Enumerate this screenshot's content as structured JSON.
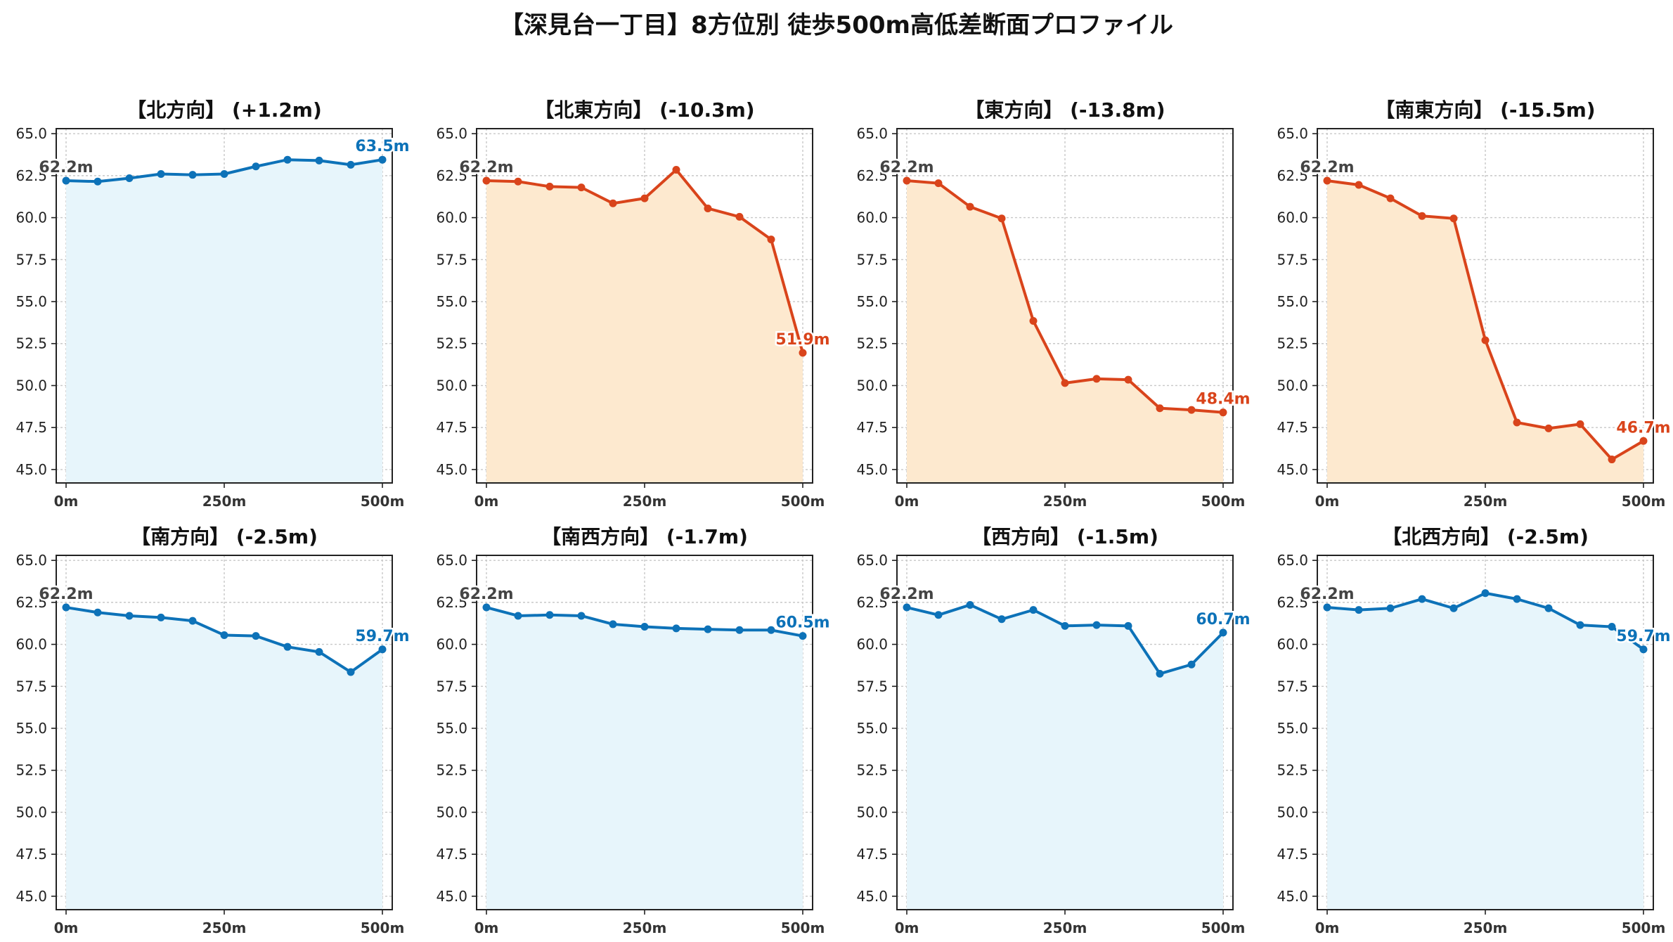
{
  "title": "【深見台一丁目】8方位別 徒歩500m高低差断面プロファイル",
  "colors": {
    "up_line": "#0d72b8",
    "up_fill": "#e7f5fb",
    "down_line": "#d9441b",
    "down_fill": "#fde9cf",
    "start_label": "#444444",
    "grid": "#c8c8c8",
    "axis": "#222222"
  },
  "chart_data": [
    {
      "type": "area",
      "title": "【北方向】 (+1.2m)",
      "trend": "up",
      "x": [
        0,
        50,
        100,
        150,
        200,
        250,
        300,
        350,
        400,
        450,
        500
      ],
      "values": [
        62.2,
        62.15,
        62.35,
        62.6,
        62.55,
        62.6,
        63.05,
        63.45,
        63.4,
        63.15,
        63.45
      ],
      "start_label": "62.2m",
      "end_label": "63.5m",
      "ylim": [
        44.2,
        65.3
      ],
      "yticks": [
        "65.0",
        "62.5",
        "60.0",
        "57.5",
        "55.0",
        "52.5",
        "50.0",
        "47.5",
        "45.0"
      ],
      "xticks": [
        "0m",
        "250m",
        "500m"
      ],
      "grid": true
    },
    {
      "type": "area",
      "title": "【北東方向】 (-10.3m)",
      "trend": "down",
      "x": [
        0,
        50,
        100,
        150,
        200,
        250,
        300,
        350,
        400,
        450,
        500
      ],
      "values": [
        62.2,
        62.15,
        61.85,
        61.8,
        60.85,
        61.15,
        62.85,
        60.55,
        60.05,
        58.7,
        51.95
      ],
      "start_label": "62.2m",
      "end_label": "51.9m",
      "ylim": [
        44.2,
        65.3
      ],
      "yticks": [
        "65.0",
        "62.5",
        "60.0",
        "57.5",
        "55.0",
        "52.5",
        "50.0",
        "47.5",
        "45.0"
      ],
      "xticks": [
        "0m",
        "250m",
        "500m"
      ],
      "grid": true
    },
    {
      "type": "area",
      "title": "【東方向】 (-13.8m)",
      "trend": "down",
      "x": [
        0,
        50,
        100,
        150,
        200,
        250,
        300,
        350,
        400,
        450,
        500
      ],
      "values": [
        62.2,
        62.05,
        60.65,
        59.95,
        53.85,
        50.15,
        50.4,
        50.35,
        48.65,
        48.55,
        48.4
      ],
      "start_label": "62.2m",
      "end_label": "48.4m",
      "ylim": [
        44.2,
        65.3
      ],
      "yticks": [
        "65.0",
        "62.5",
        "60.0",
        "57.5",
        "55.0",
        "52.5",
        "50.0",
        "47.5",
        "45.0"
      ],
      "xticks": [
        "0m",
        "250m",
        "500m"
      ],
      "grid": true
    },
    {
      "type": "area",
      "title": "【南東方向】 (-15.5m)",
      "trend": "down",
      "x": [
        0,
        50,
        100,
        150,
        200,
        250,
        300,
        350,
        400,
        450,
        500
      ],
      "values": [
        62.2,
        61.95,
        61.15,
        60.1,
        59.95,
        52.7,
        47.8,
        47.45,
        47.7,
        45.6,
        46.7
      ],
      "start_label": "62.2m",
      "end_label": "46.7m",
      "ylim": [
        44.2,
        65.3
      ],
      "yticks": [
        "65.0",
        "62.5",
        "60.0",
        "57.5",
        "55.0",
        "52.5",
        "50.0",
        "47.5",
        "45.0"
      ],
      "xticks": [
        "0m",
        "250m",
        "500m"
      ],
      "grid": true
    },
    {
      "type": "area",
      "title": "【南方向】 (-2.5m)",
      "trend": "up",
      "x": [
        0,
        50,
        100,
        150,
        200,
        250,
        300,
        350,
        400,
        450,
        500
      ],
      "values": [
        62.2,
        61.9,
        61.7,
        61.6,
        61.4,
        60.55,
        60.5,
        59.85,
        59.55,
        58.35,
        59.7
      ],
      "start_label": "62.2m",
      "end_label": "59.7m",
      "ylim": [
        44.2,
        65.3
      ],
      "yticks": [
        "65.0",
        "62.5",
        "60.0",
        "57.5",
        "55.0",
        "52.5",
        "50.0",
        "47.5",
        "45.0"
      ],
      "xticks": [
        "0m",
        "250m",
        "500m"
      ],
      "grid": true
    },
    {
      "type": "area",
      "title": "【南西方向】 (-1.7m)",
      "trend": "up",
      "x": [
        0,
        50,
        100,
        150,
        200,
        250,
        300,
        350,
        400,
        450,
        500
      ],
      "values": [
        62.2,
        61.7,
        61.75,
        61.7,
        61.2,
        61.05,
        60.95,
        60.9,
        60.85,
        60.85,
        60.5
      ],
      "start_label": "62.2m",
      "end_label": "60.5m",
      "ylim": [
        44.2,
        65.3
      ],
      "yticks": [
        "65.0",
        "62.5",
        "60.0",
        "57.5",
        "55.0",
        "52.5",
        "50.0",
        "47.5",
        "45.0"
      ],
      "xticks": [
        "0m",
        "250m",
        "500m"
      ],
      "grid": true
    },
    {
      "type": "area",
      "title": "【西方向】 (-1.5m)",
      "trend": "up",
      "x": [
        0,
        50,
        100,
        150,
        200,
        250,
        300,
        350,
        400,
        450,
        500
      ],
      "values": [
        62.2,
        61.75,
        62.35,
        61.5,
        62.05,
        61.1,
        61.15,
        61.1,
        58.25,
        58.8,
        60.7
      ],
      "start_label": "62.2m",
      "end_label": "60.7m",
      "ylim": [
        44.2,
        65.3
      ],
      "yticks": [
        "65.0",
        "62.5",
        "60.0",
        "57.5",
        "55.0",
        "52.5",
        "50.0",
        "47.5",
        "45.0"
      ],
      "xticks": [
        "0m",
        "250m",
        "500m"
      ],
      "grid": true
    },
    {
      "type": "area",
      "title": "【北西方向】 (-2.5m)",
      "trend": "up",
      "x": [
        0,
        50,
        100,
        150,
        200,
        250,
        300,
        350,
        400,
        450,
        500
      ],
      "values": [
        62.2,
        62.05,
        62.15,
        62.7,
        62.15,
        63.05,
        62.7,
        62.15,
        61.15,
        61.05,
        59.7
      ],
      "start_label": "62.2m",
      "end_label": "59.7m",
      "ylim": [
        44.2,
        65.3
      ],
      "yticks": [
        "65.0",
        "62.5",
        "60.0",
        "57.5",
        "55.0",
        "52.5",
        "50.0",
        "47.5",
        "45.0"
      ],
      "xticks": [
        "0m",
        "250m",
        "500m"
      ],
      "grid": true
    }
  ]
}
